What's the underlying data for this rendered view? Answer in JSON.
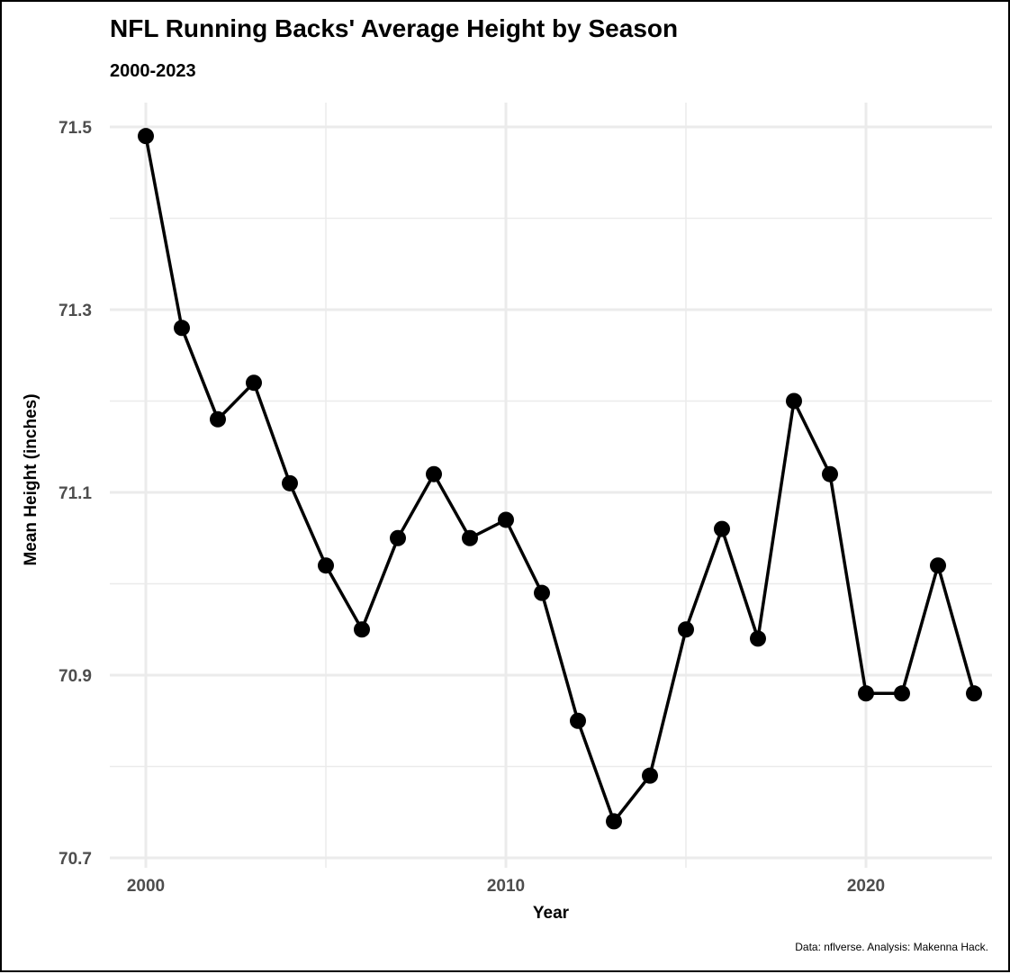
{
  "chart_data": {
    "type": "line",
    "title": "NFL Running Backs' Average Height by Season",
    "subtitle": "2000-2023",
    "xlabel": "Year",
    "ylabel": "Mean Height (inches)",
    "caption": "Data: nflverse. Analysis: Makenna Hack.",
    "xlim": [
      1999,
      2023.5
    ],
    "ylim": [
      70.7,
      71.53
    ],
    "x_ticks": [
      2000,
      2010,
      2020
    ],
    "x_tick_labels": [
      "2000",
      "2010",
      "2020"
    ],
    "y_ticks": [
      70.7,
      70.9,
      71.1,
      71.3,
      71.5
    ],
    "y_tick_labels": [
      "70.7",
      "70.9",
      "71.1",
      "71.3",
      "71.5"
    ],
    "grid": true,
    "line_color": "#000000",
    "grid_color": "#ebebeb",
    "series": [
      {
        "x": [
          2000,
          2001,
          2002,
          2003,
          2004,
          2005,
          2006,
          2007,
          2008,
          2009,
          2010,
          2011,
          2012,
          2013,
          2014,
          2015,
          2016,
          2017,
          2018,
          2019,
          2020,
          2021,
          2022,
          2023
        ],
        "values": [
          71.49,
          71.28,
          71.18,
          71.22,
          71.11,
          71.02,
          70.95,
          71.05,
          71.12,
          71.05,
          71.07,
          70.99,
          70.85,
          70.74,
          70.79,
          70.95,
          71.06,
          70.94,
          71.2,
          71.12,
          70.88,
          70.88,
          71.02,
          70.88
        ]
      }
    ]
  }
}
